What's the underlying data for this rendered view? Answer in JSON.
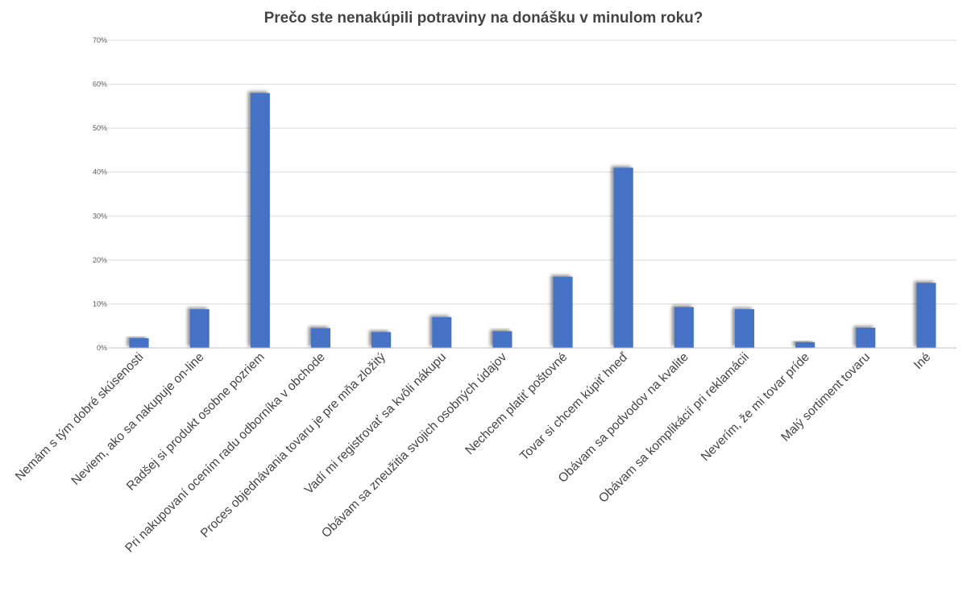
{
  "chart_data": {
    "type": "bar",
    "title": "Prečo ste nenakúpili potraviny na donášku v minulom roku?",
    "xlabel": "",
    "ylabel": "",
    "ylim": [
      0,
      70
    ],
    "y_tick_labels": [
      "0%",
      "10%",
      "20%",
      "30%",
      "40%",
      "50%",
      "60%",
      "70%"
    ],
    "y_ticks": [
      0,
      10,
      20,
      30,
      40,
      50,
      60,
      70
    ],
    "grid": true,
    "bar_color": "#4472C4",
    "grid_color": "#D9D9D9",
    "categories": [
      "Nemám s tým dobré skúsenosti",
      "Neviem, ako sa nakupuje on-line",
      "Radšej si produkt osobne pozriem",
      "Pri nakupovaní ocením radu odborníka v obchode",
      "Proces objednávania tovaru je pre mňa zložitý",
      "Vadí mi registrovať sa kvôli nákupu",
      "Obávam sa zneužitia svojich osobných údajov",
      "Nechcem platiť poštovné",
      "Tovar si chcem kúpiť hneď",
      "Obávam sa podvodov na kvalite",
      "Obávam sa komplikácií pri reklamácii",
      "Neverím, že mi tovar príde",
      "Malý sortiment tovaru",
      "Iné"
    ],
    "values": [
      2.2,
      8.8,
      58,
      4.5,
      3.6,
      7,
      3.8,
      16.2,
      41,
      9.3,
      8.8,
      1.3,
      4.6,
      14.8
    ]
  }
}
